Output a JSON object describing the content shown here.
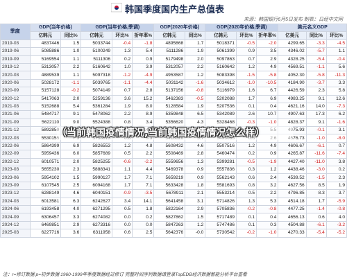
{
  "header": {
    "title": "韩国季度国内生产总值表",
    "source": "来源：韩国银行6月5日发布  制表：日经中文网"
  },
  "table": {
    "groups": [
      {
        "label": "季度",
        "span": 1
      },
      {
        "label": "GDP(当年价格)",
        "span": 2
      },
      {
        "label": "GDP(当年价格,季调)",
        "span": 3
      },
      {
        "label": "GDP(2020年价格)",
        "span": 2
      },
      {
        "label": "GDP(2020年价格,季调)",
        "span": 3
      },
      {
        "label": "美元名义GDP",
        "span": 3
      }
    ],
    "subheaders": [
      "亿韩元",
      "同比%",
      "亿韩元",
      "环比%",
      "折年率%",
      "亿韩元",
      "同比%",
      "亿韩元",
      "环比%",
      "折年率%",
      "亿美元",
      "同比%",
      "环比%"
    ],
    "rows": [
      [
        "2019-03",
        "4837446",
        "1.5",
        "5033744",
        "-0.4",
        "-1.8",
        "4895868",
        "1.7",
        "5018371",
        "-0.5",
        "-2.0",
        "4299.65",
        "-3.3",
        "-4.5"
      ],
      [
        "2019-06",
        "5085886",
        "1.0",
        "5100249",
        "1.3",
        "5.4",
        "5111286",
        "1.9",
        "5061399",
        "0.9",
        "3.5",
        "4346.02",
        "-5.7",
        "1.1"
      ],
      [
        "2019-09",
        "5169554",
        "1.1",
        "5111306",
        "0.2",
        "0.9",
        "5179498",
        "2.0",
        "5097863",
        "0.7",
        "2.9",
        "4328.25",
        "-5.4",
        "-0.4"
      ],
      [
        "2019-12",
        "5313057",
        "2.2",
        "5160642",
        "1.0",
        "3.9",
        "5312057",
        "2.2",
        "5160642",
        "1.2",
        "4.9",
        "4569.51",
        "-1.1",
        "5.6"
      ],
      [
        "2020-03",
        "4889539",
        "1.1",
        "5097318",
        "-1.2",
        "-4.9",
        "4953587",
        "1.2",
        "5083398",
        "-1.5",
        "-5.8",
        "4052.30",
        "-5.8",
        "-11.3"
      ],
      [
        "2020-06",
        "5028172",
        "-1.1",
        "5039765",
        "-1.1",
        "-4.4",
        "5031142",
        "-1.6",
        "5034612",
        "-1.0",
        "-10.5",
        "4184.90",
        "-3.7",
        "3.3"
      ],
      [
        "2020-09",
        "5157128",
        "-0.2",
        "5074149",
        "0.7",
        "2.8",
        "5137156",
        "-0.8",
        "5116979",
        "1.6",
        "6.7",
        "4426.59",
        "2.3",
        "5.8"
      ],
      [
        "2020-12",
        "5417063",
        "2.0",
        "5259136",
        "3.6",
        "15.2",
        "5462383",
        "-0.5",
        "5202088",
        "1.7",
        "6.9",
        "4983.25",
        "9.1",
        "12.6"
      ],
      [
        "2021-03",
        "5152688",
        "5.4",
        "5361284",
        "1.9",
        "8.0",
        "5128584",
        "1.9",
        "5207536",
        "0.1",
        "0.4",
        "4621.16",
        "14.0",
        "-7.3"
      ],
      [
        "2021-06",
        "5484717",
        "9.1",
        "5478062",
        "2.2",
        "8.9",
        "5359848",
        "6.5",
        "5342089",
        "2.6",
        "10.7",
        "4907.63",
        "17.3",
        "6.2"
      ],
      [
        "2021-09",
        "5622110",
        "9.0",
        "5524388",
        "0.8",
        "3.4",
        "5356620",
        "4.3",
        "5328468",
        "-0.3",
        "-1.0",
        "4828.37",
        "9.1",
        "-1.6"
      ],
      [
        "2021-12",
        "5892859",
        "8.8",
        "5712012",
        "3.4",
        "14.3",
        "5567126",
        "1.9",
        "5400134",
        "1.3",
        "5.5",
        "4975.93",
        "-0.1",
        "3.1"
      ],
      [
        "2022-03",
        "5530155",
        "7.3",
        "5758813",
        "0.8",
        "3.3",
        "5418626",
        "5.7",
        "5493085",
        "0.6",
        "2.6",
        "4576.73",
        "-1.0",
        "-8.0"
      ],
      [
        "2022-06",
        "5864399",
        "6.9",
        "5826553",
        "1.2",
        "4.8",
        "5608432",
        "4.6",
        "5507516",
        "1.2",
        "4.9",
        "4606.67",
        "-6.1",
        "0.7"
      ],
      [
        "2022-09",
        "5959436",
        "6.0",
        "5857689",
        "0.5",
        "2.2",
        "5508469",
        "2.8",
        "5460474",
        "0.2",
        "0.9",
        "4265.87",
        "-11.6",
        "-7.4"
      ],
      [
        "2022-12",
        "6010571",
        "2.0",
        "5825255",
        "-0.6",
        "-2.2",
        "5559656",
        "1.3",
        "5399281",
        "-0.5",
        "-1.9",
        "4427.40",
        "-11.0",
        "3.8"
      ],
      [
        "2023-03",
        "5655230",
        "2.3",
        "5888341",
        "1.1",
        "4.4",
        "5469378",
        "0.9",
        "5557836",
        "0.3",
        "1.2",
        "4438.46",
        "-3.0",
        "0.2"
      ],
      [
        "2023-06",
        "5954102",
        "1.5",
        "5990127",
        "1.7",
        "7.1",
        "5659219",
        "0.9",
        "5562143",
        "0.6",
        "2.4",
        "4539.52",
        "-1.5",
        "2.3"
      ],
      [
        "2023-09",
        "6107545",
        "2.5",
        "6094168",
        "1.7",
        "7.1",
        "5633428",
        "1.8",
        "5581693",
        "0.8",
        "3.2",
        "4627.56",
        "8.5",
        "1.9"
      ],
      [
        "2023-12",
        "6288149",
        "4.6",
        "6040151",
        "-0.9",
        "-3.5",
        "5678911",
        "2.1",
        "5553214",
        "0.5",
        "2.2",
        "4796.85",
        "8.3",
        "3.7"
      ],
      [
        "2024-03",
        "6013581",
        "6.3",
        "6242627",
        "3.4",
        "14.1",
        "5641458",
        "3.1",
        "5714826",
        "1.3",
        "5.3",
        "4514.18",
        "1.7",
        "-5.9"
      ],
      [
        "2024-06",
        "6193458",
        "4.0",
        "6271295",
        "0.5",
        "1.8",
        "5822164",
        "2.9",
        "5705836",
        "-0.2",
        "-0.8",
        "4477.25",
        "-1.4",
        "-0.8"
      ],
      [
        "2024-09",
        "6306457",
        "3.3",
        "6274082",
        "0.0",
        "0.2",
        "5827862",
        "1.5",
        "5717489",
        "0.1",
        "0.4",
        "4656.13",
        "0.6",
        "4.0"
      ],
      [
        "2024-12",
        "6469851",
        "2.9",
        "6273316",
        "0.0",
        "0.0",
        "5847263",
        "1.2",
        "5747486",
        "0.1",
        "0.3",
        "4504.88",
        "-6.1",
        "-3.2"
      ],
      [
        "2025-03",
        "6227716",
        "3.6",
        "6311958",
        "0.6",
        "2.5",
        "5642376",
        "-0.0",
        "5730542",
        "-0.2",
        "-1.0",
        "4270.33",
        "-5.4",
        "-5.2"
      ]
    ]
  },
  "overlay": {
    "text": "（当前韩国疫情情况,当前韩国疫情情况怎么样）"
  },
  "footer": {
    "text": "注：r=修订数据  p=初步数据  1960-1999年季度数据经过修订  完整时间序列数据请登录TopEDB经济数据智能分析平台查看"
  },
  "colors": {
    "header_bg": "#d6dff0",
    "subheader_bg": "#eaf0f9",
    "negative": "#d01a1a",
    "title": "#1e2f55"
  }
}
